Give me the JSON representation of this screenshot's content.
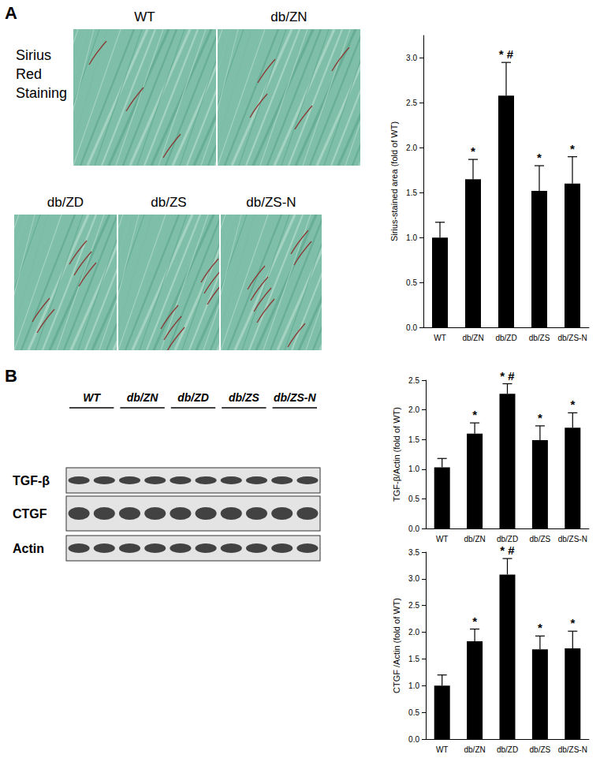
{
  "panels": {
    "A": {
      "label": "A",
      "stain": "Sirius Red Staining",
      "images": [
        "WT",
        "db/ZN",
        "db/ZD",
        "db/ZS",
        "db/ZS-N"
      ]
    },
    "B": {
      "label": "B",
      "lanes": [
        "WT",
        "db/ZN",
        "db/ZD",
        "db/ZS",
        "db/ZS-N"
      ],
      "rows": [
        "TGF-β",
        "CTGF",
        "Actin"
      ]
    }
  },
  "chart_data": [
    {
      "type": "bar",
      "y_label": "Sirius-stained area (fold of WT)",
      "categories": [
        "WT",
        "db/ZN",
        "db/ZD",
        "db/ZS",
        "db/ZS-N"
      ],
      "values": [
        1.0,
        1.65,
        2.58,
        1.52,
        1.6
      ],
      "errors": [
        0.17,
        0.22,
        0.37,
        0.28,
        0.3
      ],
      "annotations": [
        null,
        "*",
        "* #",
        "*",
        "*"
      ],
      "color": "#000000",
      "ylim": [
        0,
        3.25
      ],
      "yticks": [
        {
          "value": 0,
          "label": "0.0"
        },
        0.5,
        {
          "value": 1,
          "label": "1.0"
        },
        1.5,
        {
          "value": 2,
          "label": "2.0"
        },
        2.5,
        {
          "value": 3,
          "label": "3.0"
        }
      ],
      "grid": false
    },
    {
      "type": "bar",
      "y_label": "TGF-β/Actin (fold of WT)",
      "categories": [
        "WT",
        "db/ZN",
        "db/ZD",
        "db/ZS",
        "db/ZS-N"
      ],
      "values": [
        1.03,
        1.6,
        2.27,
        1.49,
        1.7
      ],
      "errors": [
        0.15,
        0.18,
        0.17,
        0.24,
        0.25
      ],
      "annotations": [
        null,
        "*",
        "* #",
        "*",
        "*"
      ],
      "color": "#000000",
      "ylim": [
        0,
        2.5
      ],
      "yticks": [
        {
          "value": 0,
          "label": "0.0"
        },
        0.5,
        {
          "value": 1,
          "label": "1.0"
        },
        1.5,
        {
          "value": 2,
          "label": "2.0"
        },
        2.5
      ],
      "grid": false
    },
    {
      "type": "bar",
      "y_label": "CTGF /Actin (fold of WT)",
      "categories": [
        "WT",
        "db/ZN",
        "db/ZD",
        "db/ZS",
        "db/ZS-N"
      ],
      "values": [
        1.0,
        1.83,
        3.08,
        1.68,
        1.7
      ],
      "errors": [
        0.2,
        0.23,
        0.3,
        0.25,
        0.32
      ],
      "annotations": [
        null,
        "*",
        "* #",
        "*",
        "*"
      ],
      "color": "#000000",
      "ylim": [
        0,
        3.5
      ],
      "yticks": [
        {
          "value": 0,
          "label": "0.0"
        },
        0.5,
        {
          "value": 1,
          "label": "1.0"
        },
        1.5,
        {
          "value": 2,
          "label": "2.0"
        },
        2.5,
        {
          "value": 3,
          "label": "3.0"
        },
        3.5
      ],
      "grid": false
    }
  ]
}
